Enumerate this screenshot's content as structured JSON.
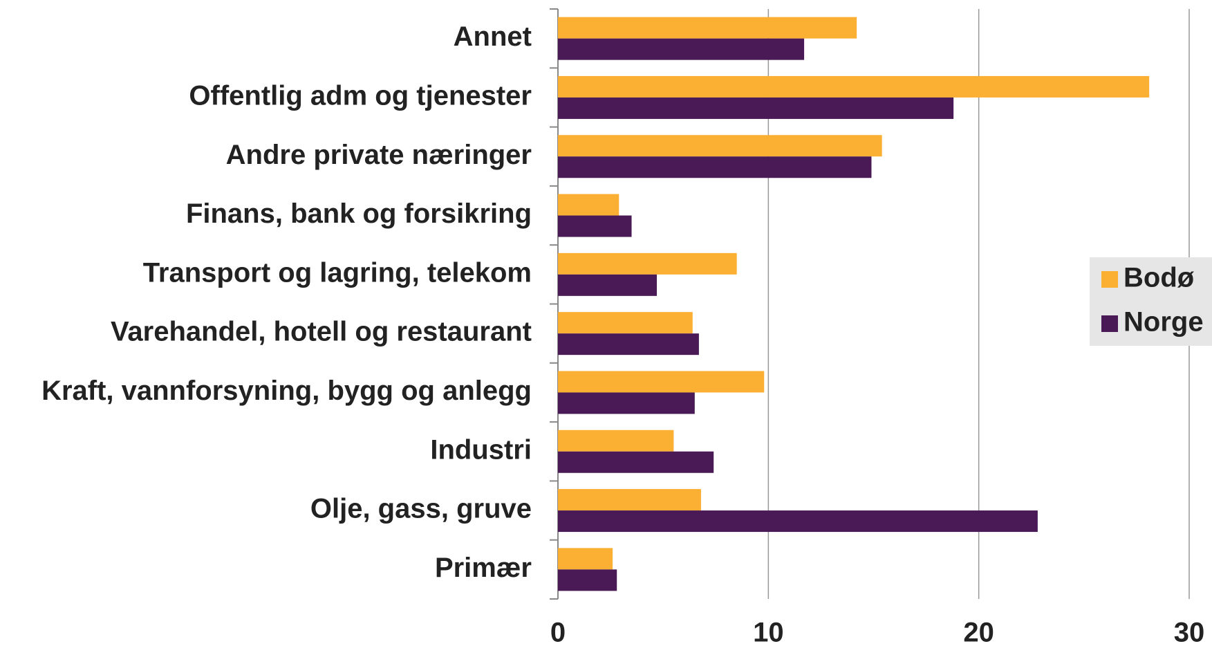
{
  "chart_data": {
    "type": "bar",
    "orientation": "horizontal",
    "categories": [
      "Annet",
      "Offentlig adm og tjenester",
      "Andre private næringer",
      "Finans, bank og forsikring",
      "Transport og lagring, telekom",
      "Varehandel, hotell og restaurant",
      "Kraft, vannforsyning, bygg og anlegg",
      "Industri",
      "Olje, gass, gruve",
      "Primær"
    ],
    "series": [
      {
        "name": "Bodø",
        "color": "#fbb034",
        "values": [
          14.2,
          28.1,
          15.4,
          2.9,
          8.5,
          6.4,
          9.8,
          5.5,
          6.8,
          2.6
        ]
      },
      {
        "name": "Norge",
        "color": "#4a1a56",
        "values": [
          11.7,
          18.8,
          14.9,
          3.5,
          4.7,
          6.7,
          6.5,
          7.4,
          22.8,
          2.8
        ]
      }
    ],
    "xlim": [
      0,
      30
    ],
    "xticks": [
      0,
      10,
      20,
      30
    ],
    "grid": true,
    "legend": "right"
  }
}
